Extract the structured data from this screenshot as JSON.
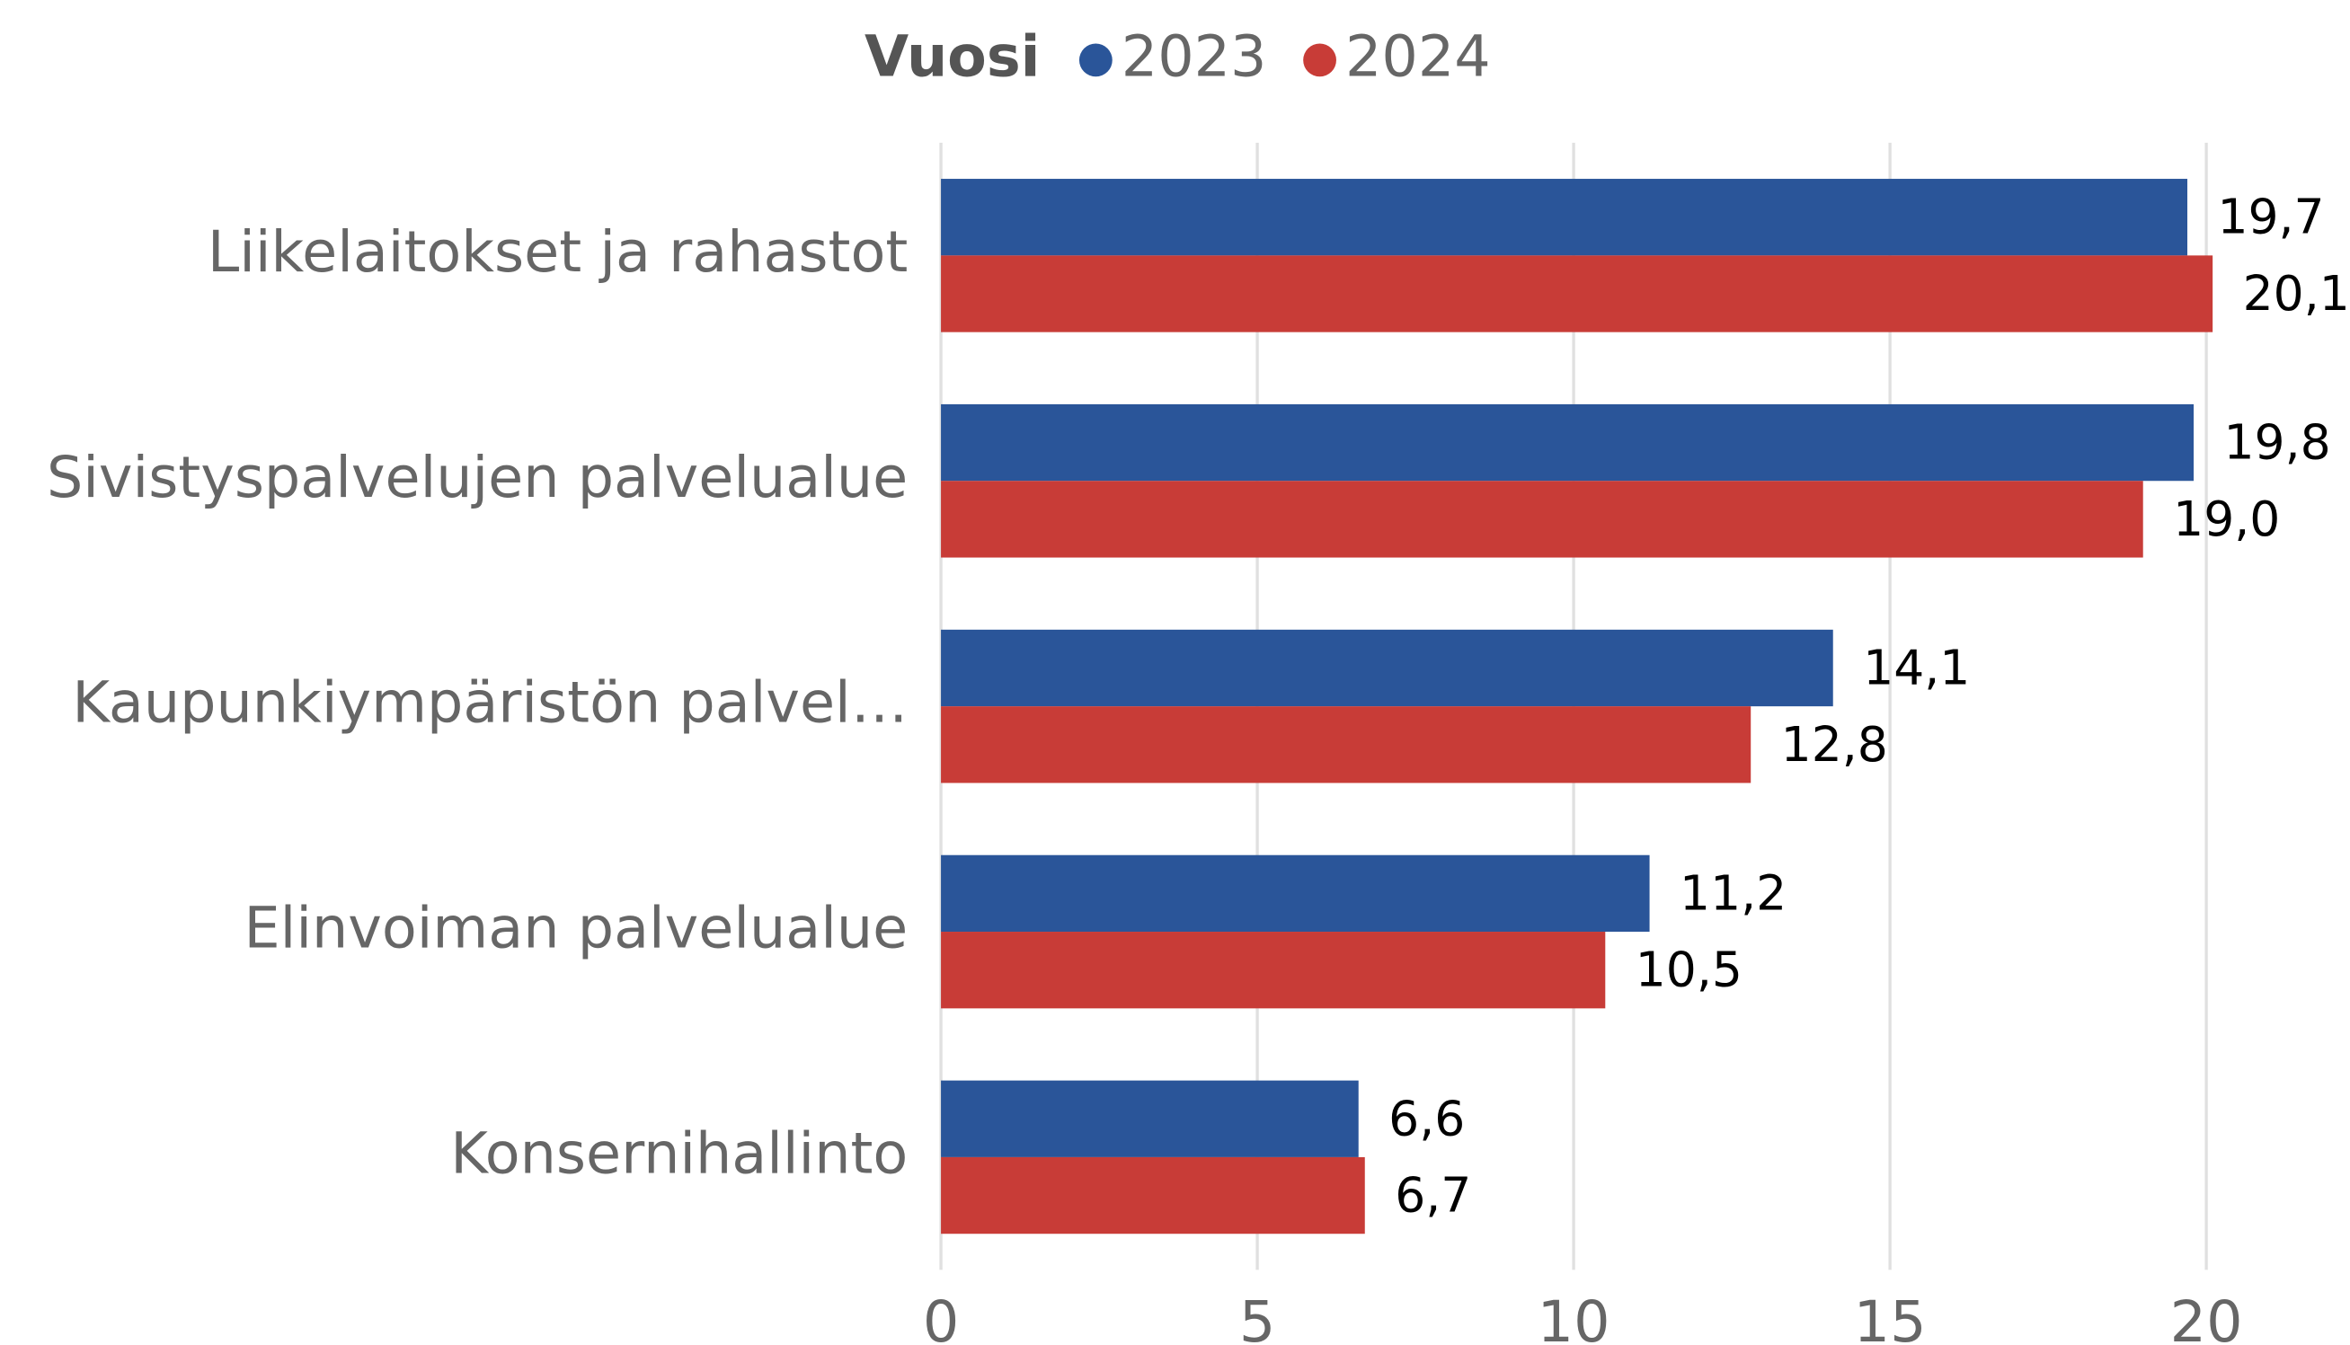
{
  "chart_data": {
    "type": "bar",
    "orientation": "horizontal",
    "legend_title": "Vuosi",
    "categories": [
      "Liikelaitokset ja rahastot",
      "Sivistyspalvelujen palvelualue",
      "Kaupunkiympäristön palvel…",
      "Elinvoiman palvelualue",
      "Konsernihallinto"
    ],
    "series": [
      {
        "name": "2023",
        "color": "#2a5599",
        "values": [
          19.7,
          19.8,
          14.1,
          11.2,
          6.6
        ],
        "value_labels": [
          "19,7",
          "19,8",
          "14,1",
          "11,2",
          "6,6"
        ]
      },
      {
        "name": "2024",
        "color": "#c83c37",
        "values": [
          20.1,
          19.0,
          12.8,
          10.5,
          6.7
        ],
        "value_labels": [
          "20,1",
          "19,0",
          "12,8",
          "10,5",
          "6,7"
        ]
      }
    ],
    "xlim": [
      0,
      22
    ],
    "xticks": [
      0,
      5,
      10,
      15,
      20
    ],
    "grid": true,
    "legend": "top"
  }
}
